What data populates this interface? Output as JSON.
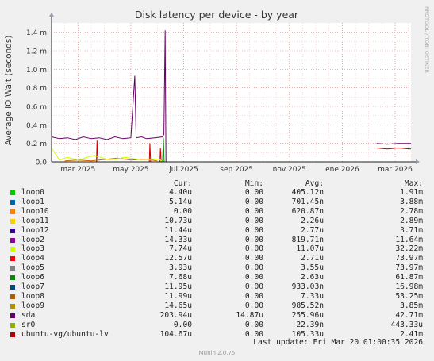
{
  "chart_data": {
    "type": "line",
    "title": "Disk latency per device - by year",
    "ylabel": "Average IO Wait (seconds)",
    "side_label": "RRDTOOL / TOBI OETIKER",
    "x_ticks": [
      "mar 2025",
      "may 2025",
      "jul 2025",
      "sep 2025",
      "nov 2025",
      "ene 2026",
      "mar 2026"
    ],
    "y_ticks": [
      "0.0",
      "0.2 m",
      "0.4 m",
      "0.6 m",
      "0.8 m",
      "1.0 m",
      "1.2 m",
      "1.4 m"
    ],
    "ylim_ms": [
      0,
      1.5
    ],
    "grid": true,
    "x_range_months": [
      0,
      13.6
    ],
    "series": [
      {
        "name": "sda",
        "color": "#660066",
        "points": [
          [
            0.0,
            0.27
          ],
          [
            0.3,
            0.25
          ],
          [
            0.6,
            0.26
          ],
          [
            0.9,
            0.24
          ],
          [
            1.2,
            0.27
          ],
          [
            1.5,
            0.25
          ],
          [
            1.8,
            0.26
          ],
          [
            2.1,
            0.24
          ],
          [
            2.4,
            0.27
          ],
          [
            2.7,
            0.25
          ],
          [
            3.0,
            0.26
          ],
          [
            3.15,
            0.93
          ],
          [
            3.2,
            0.26
          ],
          [
            3.4,
            0.27
          ],
          [
            3.6,
            0.25
          ],
          [
            3.9,
            0.26
          ],
          [
            4.2,
            0.27
          ],
          [
            4.25,
            0.3
          ],
          [
            4.3,
            1.42
          ],
          [
            4.33,
            0.0
          ]
        ]
      },
      {
        "name": "sda",
        "color": "#660066",
        "points": [
          [
            12.3,
            0.2
          ],
          [
            12.7,
            0.19
          ],
          [
            13.1,
            0.2
          ],
          [
            13.6,
            0.2
          ]
        ]
      },
      {
        "name": "ubuntu-vg/ubuntu-lv",
        "color": "#aa0000",
        "points": [
          [
            12.3,
            0.15
          ],
          [
            12.7,
            0.14
          ],
          [
            13.1,
            0.15
          ],
          [
            13.6,
            0.14
          ]
        ]
      },
      {
        "name": "loop4",
        "color": "#cc0000",
        "points": [
          [
            1.7,
            0.0
          ],
          [
            1.72,
            0.23
          ],
          [
            1.75,
            0.0
          ],
          [
            3.7,
            0.0
          ],
          [
            3.72,
            0.2
          ],
          [
            3.75,
            0.0
          ],
          [
            4.1,
            0.0
          ],
          [
            4.12,
            0.15
          ],
          [
            4.15,
            0.0
          ]
        ]
      },
      {
        "name": "loop8",
        "color": "#cc6600",
        "points": [
          [
            0.5,
            0.01
          ],
          [
            1.0,
            0.02
          ],
          [
            1.5,
            0.01
          ],
          [
            2.5,
            0.04
          ],
          [
            3.0,
            0.02
          ],
          [
            3.5,
            0.03
          ],
          [
            4.0,
            0.01
          ]
        ]
      },
      {
        "name": "loop3",
        "color": "#ccff00",
        "points": [
          [
            0.0,
            0.15
          ],
          [
            0.3,
            0.02
          ],
          [
            0.6,
            0.05
          ],
          [
            1.0,
            0.02
          ],
          [
            1.6,
            0.07
          ],
          [
            2.2,
            0.02
          ],
          [
            2.8,
            0.05
          ],
          [
            3.4,
            0.02
          ],
          [
            4.0,
            0.03
          ],
          [
            4.3,
            0.0
          ]
        ]
      },
      {
        "name": "loop6",
        "color": "#008000",
        "points": [
          [
            4.2,
            0.0
          ],
          [
            4.23,
            0.26
          ],
          [
            4.26,
            0.0
          ]
        ]
      }
    ],
    "legend": {
      "headers": [
        "Cur:",
        "Min:",
        "Avg:",
        "Max:"
      ],
      "rows": [
        {
          "name": "loop0",
          "color": "#00cc00",
          "cur": "4.40u",
          "min": "0.00",
          "avg": "405.12n",
          "max": "1.91m"
        },
        {
          "name": "loop1",
          "color": "#0066b3",
          "cur": "5.14u",
          "min": "0.00",
          "avg": "701.45n",
          "max": "3.88m"
        },
        {
          "name": "loop10",
          "color": "#ff8000",
          "cur": "0.00",
          "min": "0.00",
          "avg": "620.87n",
          "max": "2.78m"
        },
        {
          "name": "loop11",
          "color": "#ffcc00",
          "cur": "10.73u",
          "min": "0.00",
          "avg": "2.26u",
          "max": "2.89m"
        },
        {
          "name": "loop12",
          "color": "#330099",
          "cur": "11.44u",
          "min": "0.00",
          "avg": "2.77u",
          "max": "3.71m"
        },
        {
          "name": "loop2",
          "color": "#990099",
          "cur": "14.33u",
          "min": "0.00",
          "avg": "819.71n",
          "max": "11.64m"
        },
        {
          "name": "loop3",
          "color": "#ccff00",
          "cur": "7.74u",
          "min": "0.00",
          "avg": "11.07u",
          "max": "32.22m"
        },
        {
          "name": "loop4",
          "color": "#ff0000",
          "cur": "12.57u",
          "min": "0.00",
          "avg": "2.71u",
          "max": "73.97m"
        },
        {
          "name": "loop5",
          "color": "#808080",
          "cur": "3.93u",
          "min": "0.00",
          "avg": "3.55u",
          "max": "73.97m"
        },
        {
          "name": "loop6",
          "color": "#008f00",
          "cur": "7.68u",
          "min": "0.00",
          "avg": "2.63u",
          "max": "61.87m"
        },
        {
          "name": "loop7",
          "color": "#00487d",
          "cur": "11.95u",
          "min": "0.00",
          "avg": "933.03n",
          "max": "16.98m"
        },
        {
          "name": "loop8",
          "color": "#b35a00",
          "cur": "11.99u",
          "min": "0.00",
          "avg": "7.33u",
          "max": "53.25m"
        },
        {
          "name": "loop9",
          "color": "#b38f00",
          "cur": "14.65u",
          "min": "0.00",
          "avg": "985.52n",
          "max": "3.85m"
        },
        {
          "name": "sda",
          "color": "#6b006b",
          "cur": "203.94u",
          "min": "14.87u",
          "avg": "255.96u",
          "max": "42.71m"
        },
        {
          "name": "sr0",
          "color": "#8fb300",
          "cur": "0.00",
          "min": "0.00",
          "avg": "22.39n",
          "max": "443.33u"
        },
        {
          "name": "ubuntu-vg/ubuntu-lv",
          "color": "#b30000",
          "cur": "104.67u",
          "min": "0.00",
          "avg": "105.33u",
          "max": "2.41m"
        }
      ]
    },
    "last_update": "Last update: Fri Mar 20 01:00:35 2026",
    "footer": "Munin 2.0.75"
  }
}
